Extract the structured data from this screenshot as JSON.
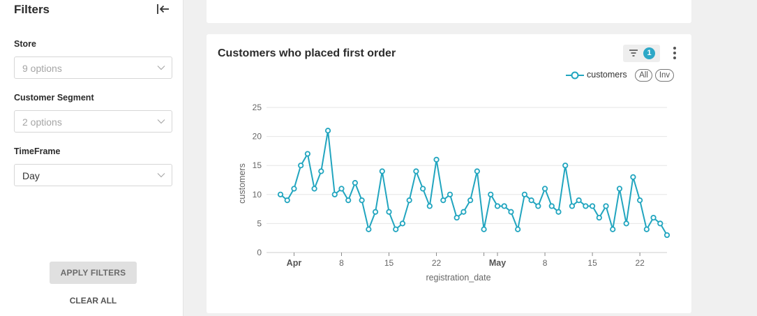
{
  "sidebar": {
    "title": "Filters",
    "filters": [
      {
        "label": "Store",
        "value": "9 options",
        "is_placeholder": true
      },
      {
        "label": "Customer Segment",
        "value": "2 options",
        "is_placeholder": true
      },
      {
        "label": "TimeFrame",
        "value": "Day",
        "is_placeholder": false
      }
    ],
    "apply_label": "APPLY FILTERS",
    "clear_label": "CLEAR ALL"
  },
  "card": {
    "title": "Customers who placed first order",
    "filter_badge": "1",
    "legend": {
      "series_name": "customers",
      "all_label": "All",
      "inv_label": "Inv"
    }
  },
  "colors": {
    "accent": "#2da8c7",
    "series": "#21a5bf"
  },
  "chart_data": {
    "type": "line",
    "xlabel": "registration_date",
    "ylabel": "customers",
    "ylim": [
      0,
      25
    ],
    "yticks": [
      0,
      5,
      10,
      15,
      20,
      25
    ],
    "xticks": [
      {
        "date": "2024-04-01",
        "label": "Apr",
        "bold": true
      },
      {
        "date": "2024-04-08",
        "label": "8",
        "bold": false
      },
      {
        "date": "2024-04-15",
        "label": "15",
        "bold": false
      },
      {
        "date": "2024-04-22",
        "label": "22",
        "bold": false
      },
      {
        "date": "2024-04-29",
        "label": "",
        "bold": false
      },
      {
        "date": "2024-05-01",
        "label": "May",
        "bold": true
      },
      {
        "date": "2024-05-08",
        "label": "8",
        "bold": false
      },
      {
        "date": "2024-05-15",
        "label": "15",
        "bold": false
      },
      {
        "date": "2024-05-22",
        "label": "22",
        "bold": false
      }
    ],
    "grid": true,
    "legend": "top-right",
    "series": [
      {
        "name": "customers",
        "x": [
          "2024-03-30",
          "2024-03-31",
          "2024-04-01",
          "2024-04-02",
          "2024-04-03",
          "2024-04-04",
          "2024-04-05",
          "2024-04-06",
          "2024-04-07",
          "2024-04-08",
          "2024-04-09",
          "2024-04-10",
          "2024-04-11",
          "2024-04-12",
          "2024-04-13",
          "2024-04-14",
          "2024-04-15",
          "2024-04-16",
          "2024-04-17",
          "2024-04-18",
          "2024-04-19",
          "2024-04-20",
          "2024-04-21",
          "2024-04-22",
          "2024-04-23",
          "2024-04-24",
          "2024-04-25",
          "2024-04-26",
          "2024-04-27",
          "2024-04-28",
          "2024-04-29",
          "2024-04-30",
          "2024-05-01",
          "2024-05-02",
          "2024-05-03",
          "2024-05-04",
          "2024-05-05",
          "2024-05-06",
          "2024-05-07",
          "2024-05-08",
          "2024-05-09",
          "2024-05-10",
          "2024-05-11",
          "2024-05-12",
          "2024-05-13",
          "2024-05-14",
          "2024-05-15",
          "2024-05-16",
          "2024-05-17",
          "2024-05-18",
          "2024-05-19",
          "2024-05-20",
          "2024-05-21",
          "2024-05-22",
          "2024-05-23",
          "2024-05-24",
          "2024-05-25",
          "2024-05-26"
        ],
        "values": [
          10,
          9,
          11,
          15,
          17,
          11,
          14,
          21,
          10,
          11,
          9,
          12,
          9,
          4,
          7,
          14,
          7,
          4,
          5,
          9,
          14,
          11,
          8,
          16,
          9,
          10,
          6,
          7,
          9,
          14,
          4,
          10,
          8,
          8,
          7,
          4,
          10,
          9,
          8,
          11,
          8,
          7,
          15,
          8,
          9,
          8,
          8,
          6,
          8,
          4,
          11,
          5,
          13,
          9,
          4,
          6,
          5,
          3
        ]
      }
    ]
  }
}
